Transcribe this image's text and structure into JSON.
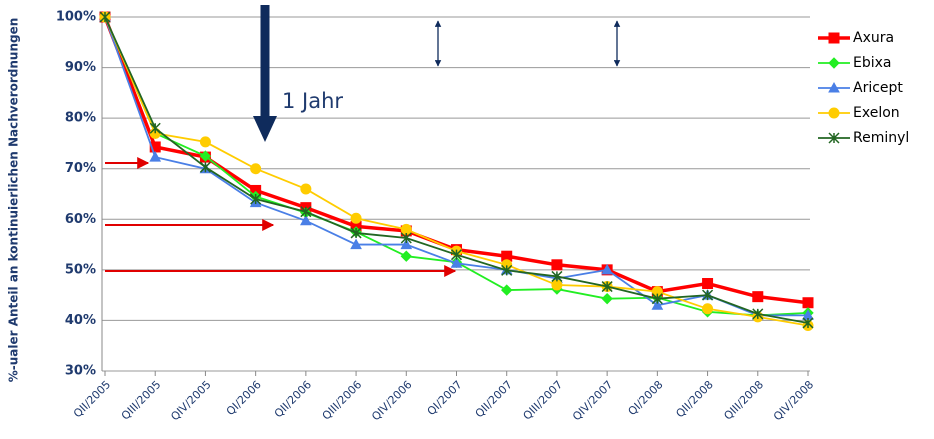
{
  "chart_data": {
    "type": "line",
    "ylabel": "%-ualer Anteil an kontinuierlichen Nachverordnungen",
    "annotation": "1 Jahr",
    "categories": [
      "QII/2005",
      "QIII/2005",
      "QIV/2005",
      "QI/2006",
      "QII/2006",
      "QIII/2006",
      "QIV/2006",
      "QI/2007",
      "QII/2007",
      "QIII/2007",
      "QIV/2007",
      "QI/2008",
      "QII/2008",
      "QIII/2008",
      "QIV/2008"
    ],
    "series": [
      {
        "name": "Axura",
        "color": "#ff0000",
        "marker": "square",
        "values": [
          100,
          74.3,
          72.3,
          65.7,
          62.3,
          58.6,
          57.7,
          54,
          52.7,
          51,
          50,
          45.7,
          47.3,
          44.7,
          43.5
        ]
      },
      {
        "name": "Ebixa",
        "color": "#22ee22",
        "marker": "diamond",
        "values": [
          100,
          77,
          72.5,
          64.5,
          61.3,
          57.5,
          52.7,
          51.5,
          46,
          46.2,
          44.3,
          44.5,
          41.7,
          41,
          41.5
        ]
      },
      {
        "name": "Aricept",
        "color": "#4a7fe6",
        "marker": "triangle",
        "values": [
          100,
          72.3,
          70,
          63.3,
          59.7,
          55,
          55,
          51.3,
          50,
          48.3,
          50,
          43,
          45,
          41,
          41
        ]
      },
      {
        "name": "Exelon",
        "color": "#ffcc00",
        "marker": "circle",
        "values": [
          100,
          77,
          75.3,
          70,
          66,
          60.2,
          58,
          53.7,
          51,
          47,
          46.7,
          45.7,
          42.3,
          40.7,
          39
        ]
      },
      {
        "name": "Reminyl",
        "color": "#226622",
        "marker": "star",
        "values": [
          100,
          78,
          70.3,
          64,
          61.5,
          57.3,
          56.3,
          53,
          49.9,
          48.7,
          46.7,
          44.3,
          45,
          41.3,
          39.5
        ]
      }
    ],
    "ylim": [
      30,
      100
    ],
    "yticks": [
      {
        "value": 30,
        "label": "30%"
      },
      {
        "value": 40,
        "label": "40%"
      },
      {
        "value": 50,
        "label": "50%"
      },
      {
        "value": 60,
        "label": "60%"
      },
      {
        "value": 70,
        "label": "70%"
      },
      {
        "value": 80,
        "label": "80%"
      },
      {
        "value": 90,
        "label": "90%"
      },
      {
        "value": 100,
        "label": "100%"
      }
    ],
    "grid": true,
    "legend": "right"
  }
}
